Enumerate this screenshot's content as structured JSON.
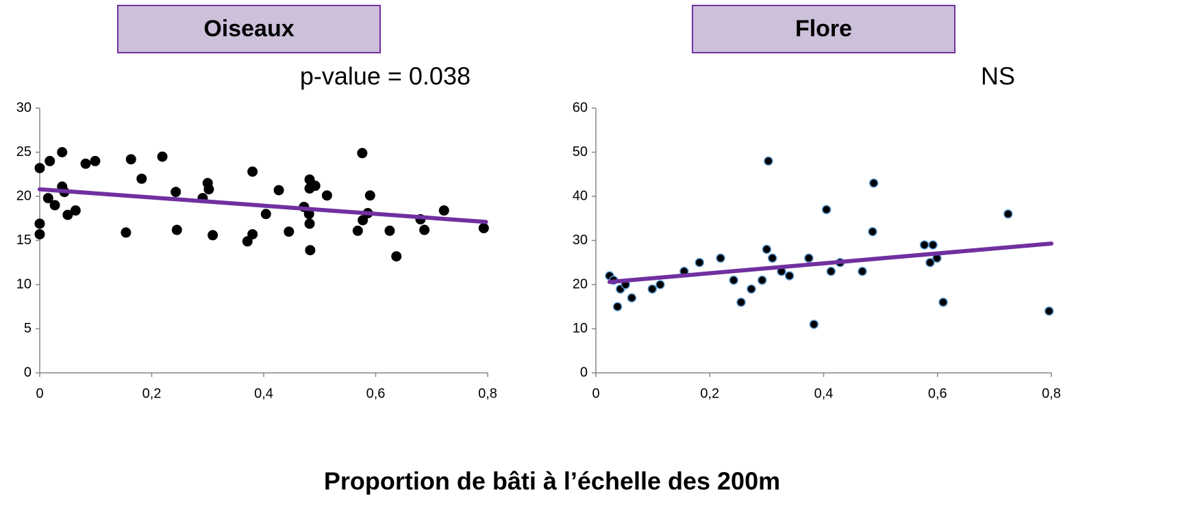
{
  "xlabel": "Proportion de bâti à l’échelle des 200m",
  "chart_data": [
    {
      "type": "scatter",
      "title": "Oiseaux",
      "annotation": "p-value = 0.038",
      "title_box_color": "#ccc0da",
      "title_box_border": "#7030a0",
      "xlim": [
        0,
        0.8
      ],
      "ylim": [
        0,
        30
      ],
      "xticks": [
        0,
        {
          "value": 0.2,
          "label": "0,2"
        },
        {
          "value": 0.4,
          "label": "0,4"
        },
        {
          "value": 0.6,
          "label": "0,6"
        },
        {
          "value": 0.8,
          "label": "0,8"
        }
      ],
      "yticks": [
        0,
        5,
        10,
        15,
        20,
        25,
        30
      ],
      "series": [
        {
          "color": "#000000",
          "x": [
            0,
            0,
            0,
            0.015,
            0.018,
            0.027,
            0.04,
            0.04,
            0.044,
            0.05,
            0.064,
            0.082,
            0.099,
            0.154,
            0.163,
            0.182,
            0.219,
            0.243,
            0.245,
            0.291,
            0.3,
            0.302,
            0.309,
            0.371,
            0.38,
            0.38,
            0.404,
            0.427,
            0.445,
            0.472,
            0.481,
            0.482,
            0.482,
            0.482,
            0.483,
            0.492,
            0.513,
            0.568,
            0.576,
            0.577,
            0.586,
            0.59,
            0.625,
            0.637,
            0.68,
            0.687,
            0.722,
            0.793
          ],
          "values": [
            23.2,
            16.9,
            15.7,
            19.8,
            24.0,
            19.0,
            25.0,
            21.1,
            20.5,
            17.9,
            18.4,
            23.7,
            24.0,
            15.9,
            24.2,
            22.0,
            24.5,
            20.5,
            16.2,
            19.8,
            21.5,
            20.8,
            15.6,
            14.9,
            22.8,
            15.7,
            18.0,
            20.7,
            16.0,
            18.8,
            18.0,
            21.9,
            20.9,
            16.9,
            13.9,
            21.2,
            20.1,
            16.1,
            24.9,
            17.3,
            18.1,
            20.1,
            16.1,
            13.2,
            17.4,
            16.2,
            18.4,
            16.4
          ]
        }
      ],
      "trendline": {
        "color": "#7030a0",
        "x": [
          0,
          0.797
        ],
        "values": [
          20.8,
          17.1
        ]
      }
    },
    {
      "type": "scatter",
      "title": "Flore",
      "annotation": "NS",
      "title_box_color": "#ccc0da",
      "title_box_border": "#7030a0",
      "xlim": [
        0,
        0.8
      ],
      "ylim": [
        0,
        60
      ],
      "xticks": [
        0,
        {
          "value": 0.2,
          "label": "0,2"
        },
        {
          "value": 0.4,
          "label": "0,4"
        },
        {
          "value": 0.6,
          "label": "0,6"
        },
        {
          "value": 0.8,
          "label": "0,8"
        }
      ],
      "yticks": [
        0,
        10,
        20,
        30,
        40,
        50,
        60
      ],
      "series": [
        {
          "color": "#000000",
          "edge_color": "#5b9bd5",
          "x": [
            0.024,
            0.031,
            0.038,
            0.043,
            0.052,
            0.063,
            0.099,
            0.113,
            0.155,
            0.182,
            0.219,
            0.242,
            0.255,
            0.273,
            0.292,
            0.3,
            0.303,
            0.31,
            0.326,
            0.34,
            0.374,
            0.383,
            0.405,
            0.413,
            0.429,
            0.468,
            0.486,
            0.488,
            0.577,
            0.587,
            0.592,
            0.599,
            0.61,
            0.724,
            0.796
          ],
          "values": [
            22,
            21,
            15,
            19,
            20,
            17,
            19,
            20,
            23,
            25,
            26,
            21,
            16,
            19,
            21,
            28,
            48,
            26,
            23,
            22,
            26,
            11,
            37,
            23,
            25,
            23,
            32,
            43,
            29,
            25,
            29,
            26,
            16,
            36,
            14
          ]
        }
      ],
      "trendline": {
        "color": "#7030a0",
        "x": [
          0.024,
          0.8
        ],
        "values": [
          20.6,
          29.3
        ]
      }
    }
  ]
}
